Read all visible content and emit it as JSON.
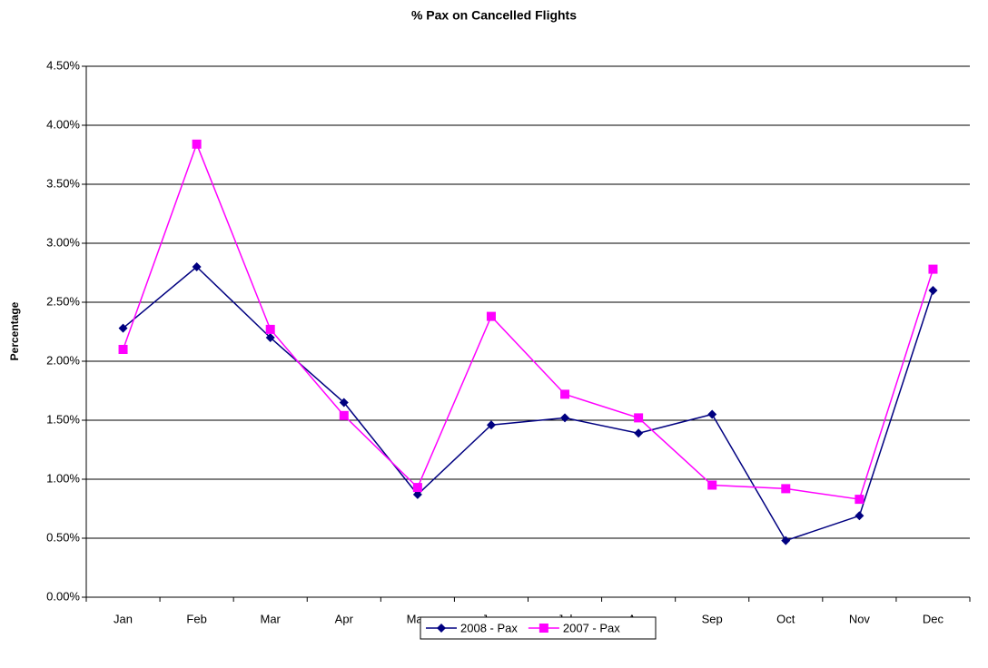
{
  "chart_data": {
    "type": "line",
    "title": "% Pax on Cancelled Flights",
    "y_label": "Percentage",
    "categories": [
      "Jan",
      "Feb",
      "Mar",
      "Apr",
      "May",
      "Jun",
      "Jul",
      "Aug",
      "Sep",
      "Oct",
      "Nov",
      "Dec"
    ],
    "series": [
      {
        "name": "2008 - Pax",
        "color": "#000080",
        "marker": "diamond",
        "values": [
          2.28,
          2.8,
          2.2,
          1.65,
          0.87,
          1.46,
          1.52,
          1.39,
          1.55,
          0.48,
          0.69,
          2.6
        ]
      },
      {
        "name": "2007 - Pax",
        "color": "#ff00ff",
        "marker": "square",
        "values": [
          2.1,
          3.84,
          2.27,
          1.54,
          0.93,
          2.38,
          1.72,
          1.52,
          0.95,
          0.92,
          0.83,
          2.78
        ]
      }
    ],
    "ylim": [
      0,
      4.5
    ],
    "yticks": [
      {
        "value": 0,
        "label": "0.00%"
      },
      {
        "value": 0.5,
        "label": "0.50%"
      },
      {
        "value": 1,
        "label": "1.00%"
      },
      {
        "value": 1.5,
        "label": "1.50%"
      },
      {
        "value": 2,
        "label": "2.00%"
      },
      {
        "value": 2.5,
        "label": "2.50%"
      },
      {
        "value": 3,
        "label": "3.00%"
      },
      {
        "value": 3.5,
        "label": "3.50%"
      },
      {
        "value": 4,
        "label": "4.00%"
      },
      {
        "value": 4.5,
        "label": "4.50%"
      }
    ],
    "grid": true,
    "legend": "bottom"
  }
}
